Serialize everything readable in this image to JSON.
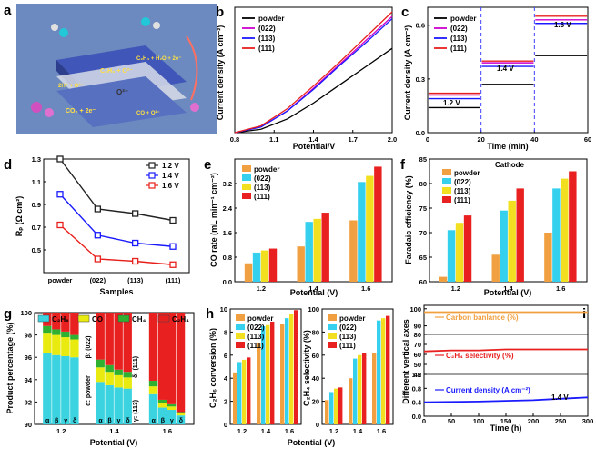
{
  "panel_labels": [
    "a",
    "b",
    "c",
    "d",
    "e",
    "f",
    "g",
    "h",
    "i"
  ],
  "schematic": {
    "reaction_top": "C₂H₆ + O²⁻",
    "reaction_top2": "C₂H₄ + H₂O + 2e⁻",
    "reaction_left": "2H⁺ + O²⁻",
    "center_label": "O²⁻",
    "reaction_bottom": "CO₂ + 2e⁻",
    "reaction_bottom2": "CO + O²⁻"
  },
  "chart_data": [
    {
      "id": "b",
      "type": "line",
      "xlabel": "Potential/V",
      "ylabel": "Current density (A cm⁻²)",
      "xlim": [
        0.8,
        2.0
      ],
      "ylim": [
        0,
        1.1
      ],
      "xticks": [
        "0.8",
        "1.1",
        "1.4",
        "1.7",
        "2.0"
      ],
      "series": [
        {
          "name": "powder",
          "color": "#000000",
          "x": [
            0.8,
            1.0,
            1.2,
            1.4,
            1.6,
            1.8,
            2.0
          ],
          "y": [
            0,
            0.03,
            0.12,
            0.26,
            0.42,
            0.58,
            0.74
          ]
        },
        {
          "name": "(022)",
          "color": "#cc00cc",
          "x": [
            0.8,
            1.0,
            1.2,
            1.4,
            1.6,
            1.8,
            2.0
          ],
          "y": [
            0,
            0.05,
            0.19,
            0.39,
            0.6,
            0.81,
            1.02
          ]
        },
        {
          "name": "(113)",
          "color": "#1a1aff",
          "x": [
            0.8,
            1.0,
            1.2,
            1.4,
            1.6,
            1.8,
            2.0
          ],
          "y": [
            0,
            0.05,
            0.19,
            0.38,
            0.59,
            0.79,
            1.0
          ]
        },
        {
          "name": "(111)",
          "color": "#e8201c",
          "x": [
            0.8,
            1.0,
            1.2,
            1.4,
            1.6,
            1.8,
            2.0
          ],
          "y": [
            0,
            0.06,
            0.21,
            0.41,
            0.62,
            0.84,
            1.06
          ]
        }
      ]
    },
    {
      "id": "c",
      "type": "line",
      "xlabel": "Time (min)",
      "ylabel": "Current density (A cm⁻²)",
      "xlim": [
        0,
        60
      ],
      "ylim": [
        0,
        0.7
      ],
      "xticks": [
        "0",
        "20",
        "40",
        "60"
      ],
      "yticks": [
        "0.0",
        "0.3",
        "0.6"
      ],
      "annotations": [
        "1.2 V",
        "1.4 V",
        "1.6 V"
      ],
      "series": [
        {
          "name": "powder",
          "color": "#000000",
          "segments": [
            0.14,
            0.27,
            0.43
          ]
        },
        {
          "name": "(022)",
          "color": "#cc00cc",
          "segments": [
            0.21,
            0.39,
            0.63
          ]
        },
        {
          "name": "(113)",
          "color": "#1a1aff",
          "segments": [
            0.19,
            0.37,
            0.61
          ]
        },
        {
          "name": "(111)",
          "color": "#e8201c",
          "segments": [
            0.22,
            0.4,
            0.65
          ]
        }
      ]
    },
    {
      "id": "d",
      "type": "line",
      "xlabel": "Samples",
      "ylabel": "Rₚ (Ω cm²)",
      "categories": [
        "powder",
        "(022)",
        "(113)",
        "(111)"
      ],
      "ylim": [
        0.3,
        1.3
      ],
      "yticks": [
        "0.5",
        "0.7",
        "0.9",
        "1.1",
        "1.3"
      ],
      "series": [
        {
          "name": "1.2 V",
          "color": "#222222",
          "values": [
            1.3,
            0.86,
            0.82,
            0.76
          ]
        },
        {
          "name": "1.4 V",
          "color": "#1a1aff",
          "values": [
            0.99,
            0.63,
            0.56,
            0.53
          ]
        },
        {
          "name": "1.6 V",
          "color": "#e8201c",
          "values": [
            0.72,
            0.42,
            0.4,
            0.37
          ]
        }
      ]
    },
    {
      "id": "e",
      "type": "bar",
      "xlabel": "Potential (V)",
      "ylabel": "CO rate (mL min⁻¹ cm⁻²)",
      "categories": [
        "1.2",
        "1.4",
        "1.6"
      ],
      "ylim": [
        0,
        4.0
      ],
      "yticks": [
        "0.0",
        "0.8",
        "1.6",
        "2.4",
        "3.2"
      ],
      "series": [
        {
          "name": "powder",
          "color": "#f0a040",
          "values": [
            0.6,
            1.15,
            2.0
          ]
        },
        {
          "name": "(022)",
          "color": "#35d0ee",
          "values": [
            0.95,
            1.95,
            3.25
          ]
        },
        {
          "name": "(113)",
          "color": "#f2e020",
          "values": [
            1.02,
            2.05,
            3.45
          ]
        },
        {
          "name": "(111)",
          "color": "#e82020",
          "values": [
            1.08,
            2.25,
            3.75
          ]
        }
      ]
    },
    {
      "id": "f",
      "type": "bar",
      "title": "Cathode",
      "xlabel": "Potential (V)",
      "ylabel": "Faradaic efficiency (%)",
      "categories": [
        "1.2",
        "1.4",
        "1.6"
      ],
      "ylim": [
        60,
        85
      ],
      "yticks": [
        "60",
        "65",
        "70",
        "75",
        "80",
        "85"
      ],
      "series": [
        {
          "name": "powder",
          "color": "#f0a040",
          "values": [
            61,
            65.5,
            70
          ]
        },
        {
          "name": "(022)",
          "color": "#35d0ee",
          "values": [
            70.5,
            74.5,
            79
          ]
        },
        {
          "name": "(113)",
          "color": "#f2e020",
          "values": [
            72,
            76.5,
            81
          ]
        },
        {
          "name": "(111)",
          "color": "#e82020",
          "values": [
            73.5,
            79,
            82.5
          ]
        }
      ]
    },
    {
      "id": "g",
      "type": "bar",
      "xlabel": "Potential (V)",
      "ylabel": "Product percentage (%)",
      "categories": [
        "1.2",
        "1.4",
        "1.6"
      ],
      "ylim": [
        90,
        100
      ],
      "yticks": [
        "90",
        "92",
        "94",
        "96",
        "98",
        "100"
      ],
      "legend": [
        "C₂H₆",
        "CO",
        "CH₄",
        "C₂H₄"
      ],
      "sample_labels": [
        "α: powder",
        "β: (022)",
        "γ: (113)",
        "δ: (111)"
      ],
      "sub_labels": [
        "α",
        "β",
        "γ",
        "δ"
      ],
      "series": [
        {
          "name": "C₂H₆",
          "color": "#3bd3e0",
          "values": [
            [
              96.4,
              96.2,
              96.1,
              96.0
            ],
            [
              93.8,
              93.5,
              93.3,
              93.2
            ],
            [
              92.7,
              91.5,
              91.3,
              90.8
            ]
          ]
        },
        {
          "name": "CO",
          "color": "#e8ea10",
          "values": [
            [
              1.8,
              1.8,
              1.7,
              1.6
            ],
            [
              1.3,
              1.2,
              1.1,
              1.0
            ],
            [
              0.7,
              0.4,
              0.3,
              0.2
            ]
          ]
        },
        {
          "name": "CH₄",
          "color": "#2fb030",
          "values": [
            [
              0.6,
              0.5,
              0.5,
              0.4
            ],
            [
              0.7,
              0.6,
              0.5,
              0.5
            ],
            [
              0.5,
              0.3,
              0.2,
              0.1
            ]
          ]
        },
        {
          "name": "C₂H₄",
          "color": "#e82020",
          "values": [
            [
              1.2,
              1.5,
              1.7,
              2.0
            ],
            [
              4.2,
              4.7,
              5.1,
              5.3
            ],
            [
              6.1,
              7.8,
              8.2,
              8.9
            ]
          ]
        }
      ]
    },
    {
      "id": "h1",
      "type": "bar",
      "xlabel": "Potential (V)",
      "ylabel": "C₂H₆ conversion (%)",
      "categories": [
        "1.2",
        "1.4",
        "1.6"
      ],
      "ylim": [
        0,
        10
      ],
      "yticks": [
        "0",
        "2",
        "4",
        "6",
        "8",
        "10"
      ],
      "series": [
        {
          "name": "powder",
          "color": "#f0a040",
          "values": [
            4.5,
            7.0,
            8.7
          ]
        },
        {
          "name": "(022)",
          "color": "#35d0ee",
          "values": [
            5.4,
            8.5,
            9.2
          ]
        },
        {
          "name": "(113)",
          "color": "#f2e020",
          "values": [
            5.6,
            8.6,
            9.6
          ]
        },
        {
          "name": "(111)",
          "color": "#e82020",
          "values": [
            5.8,
            8.9,
            9.9
          ]
        }
      ]
    },
    {
      "id": "h2",
      "type": "bar",
      "ylabel": "C₂H₄ selectivity (%)",
      "categories": [
        "1.2",
        "1.4",
        "1.6"
      ],
      "ylim": [
        0,
        100
      ],
      "yticks": [
        "0",
        "20",
        "40",
        "60",
        "80",
        "100"
      ],
      "series": [
        {
          "name": "powder",
          "color": "#f0a040",
          "values": [
            21,
            40,
            62
          ]
        },
        {
          "name": "(022)",
          "color": "#35d0ee",
          "values": [
            28,
            57,
            90
          ]
        },
        {
          "name": "(113)",
          "color": "#f2e020",
          "values": [
            31,
            60,
            92
          ]
        },
        {
          "name": "(111)",
          "color": "#e82020",
          "values": [
            32,
            62,
            94
          ]
        }
      ]
    },
    {
      "id": "i",
      "type": "line",
      "xlabel": "Time (h)",
      "ylabel": "Different vertical axes",
      "xlim": [
        0,
        300
      ],
      "xticks": [
        "0",
        "50",
        "100",
        "150",
        "200",
        "250",
        "300"
      ],
      "ylim": [
        0,
        100
      ],
      "yticks": [
        "0.0",
        "0.4",
        "0.8",
        "1.2",
        "40",
        "50",
        "60",
        "70",
        "80",
        "90",
        "100"
      ],
      "annotation": "1.4 V",
      "series": [
        {
          "name": "Carbon banlance (%)",
          "color": "#f0a040",
          "values": [
            98,
            98,
            98,
            98,
            98,
            98,
            98
          ]
        },
        {
          "name": "C₂H₄ selectivity (%)",
          "color": "#e82020",
          "values": [
            63,
            64,
            64,
            65,
            65,
            65,
            65
          ]
        },
        {
          "name": "Current density (A cm⁻²)",
          "color": "#1a1aff",
          "values": [
            0.4,
            0.41,
            0.42,
            0.44,
            0.46,
            0.5,
            0.54
          ]
        }
      ]
    }
  ]
}
